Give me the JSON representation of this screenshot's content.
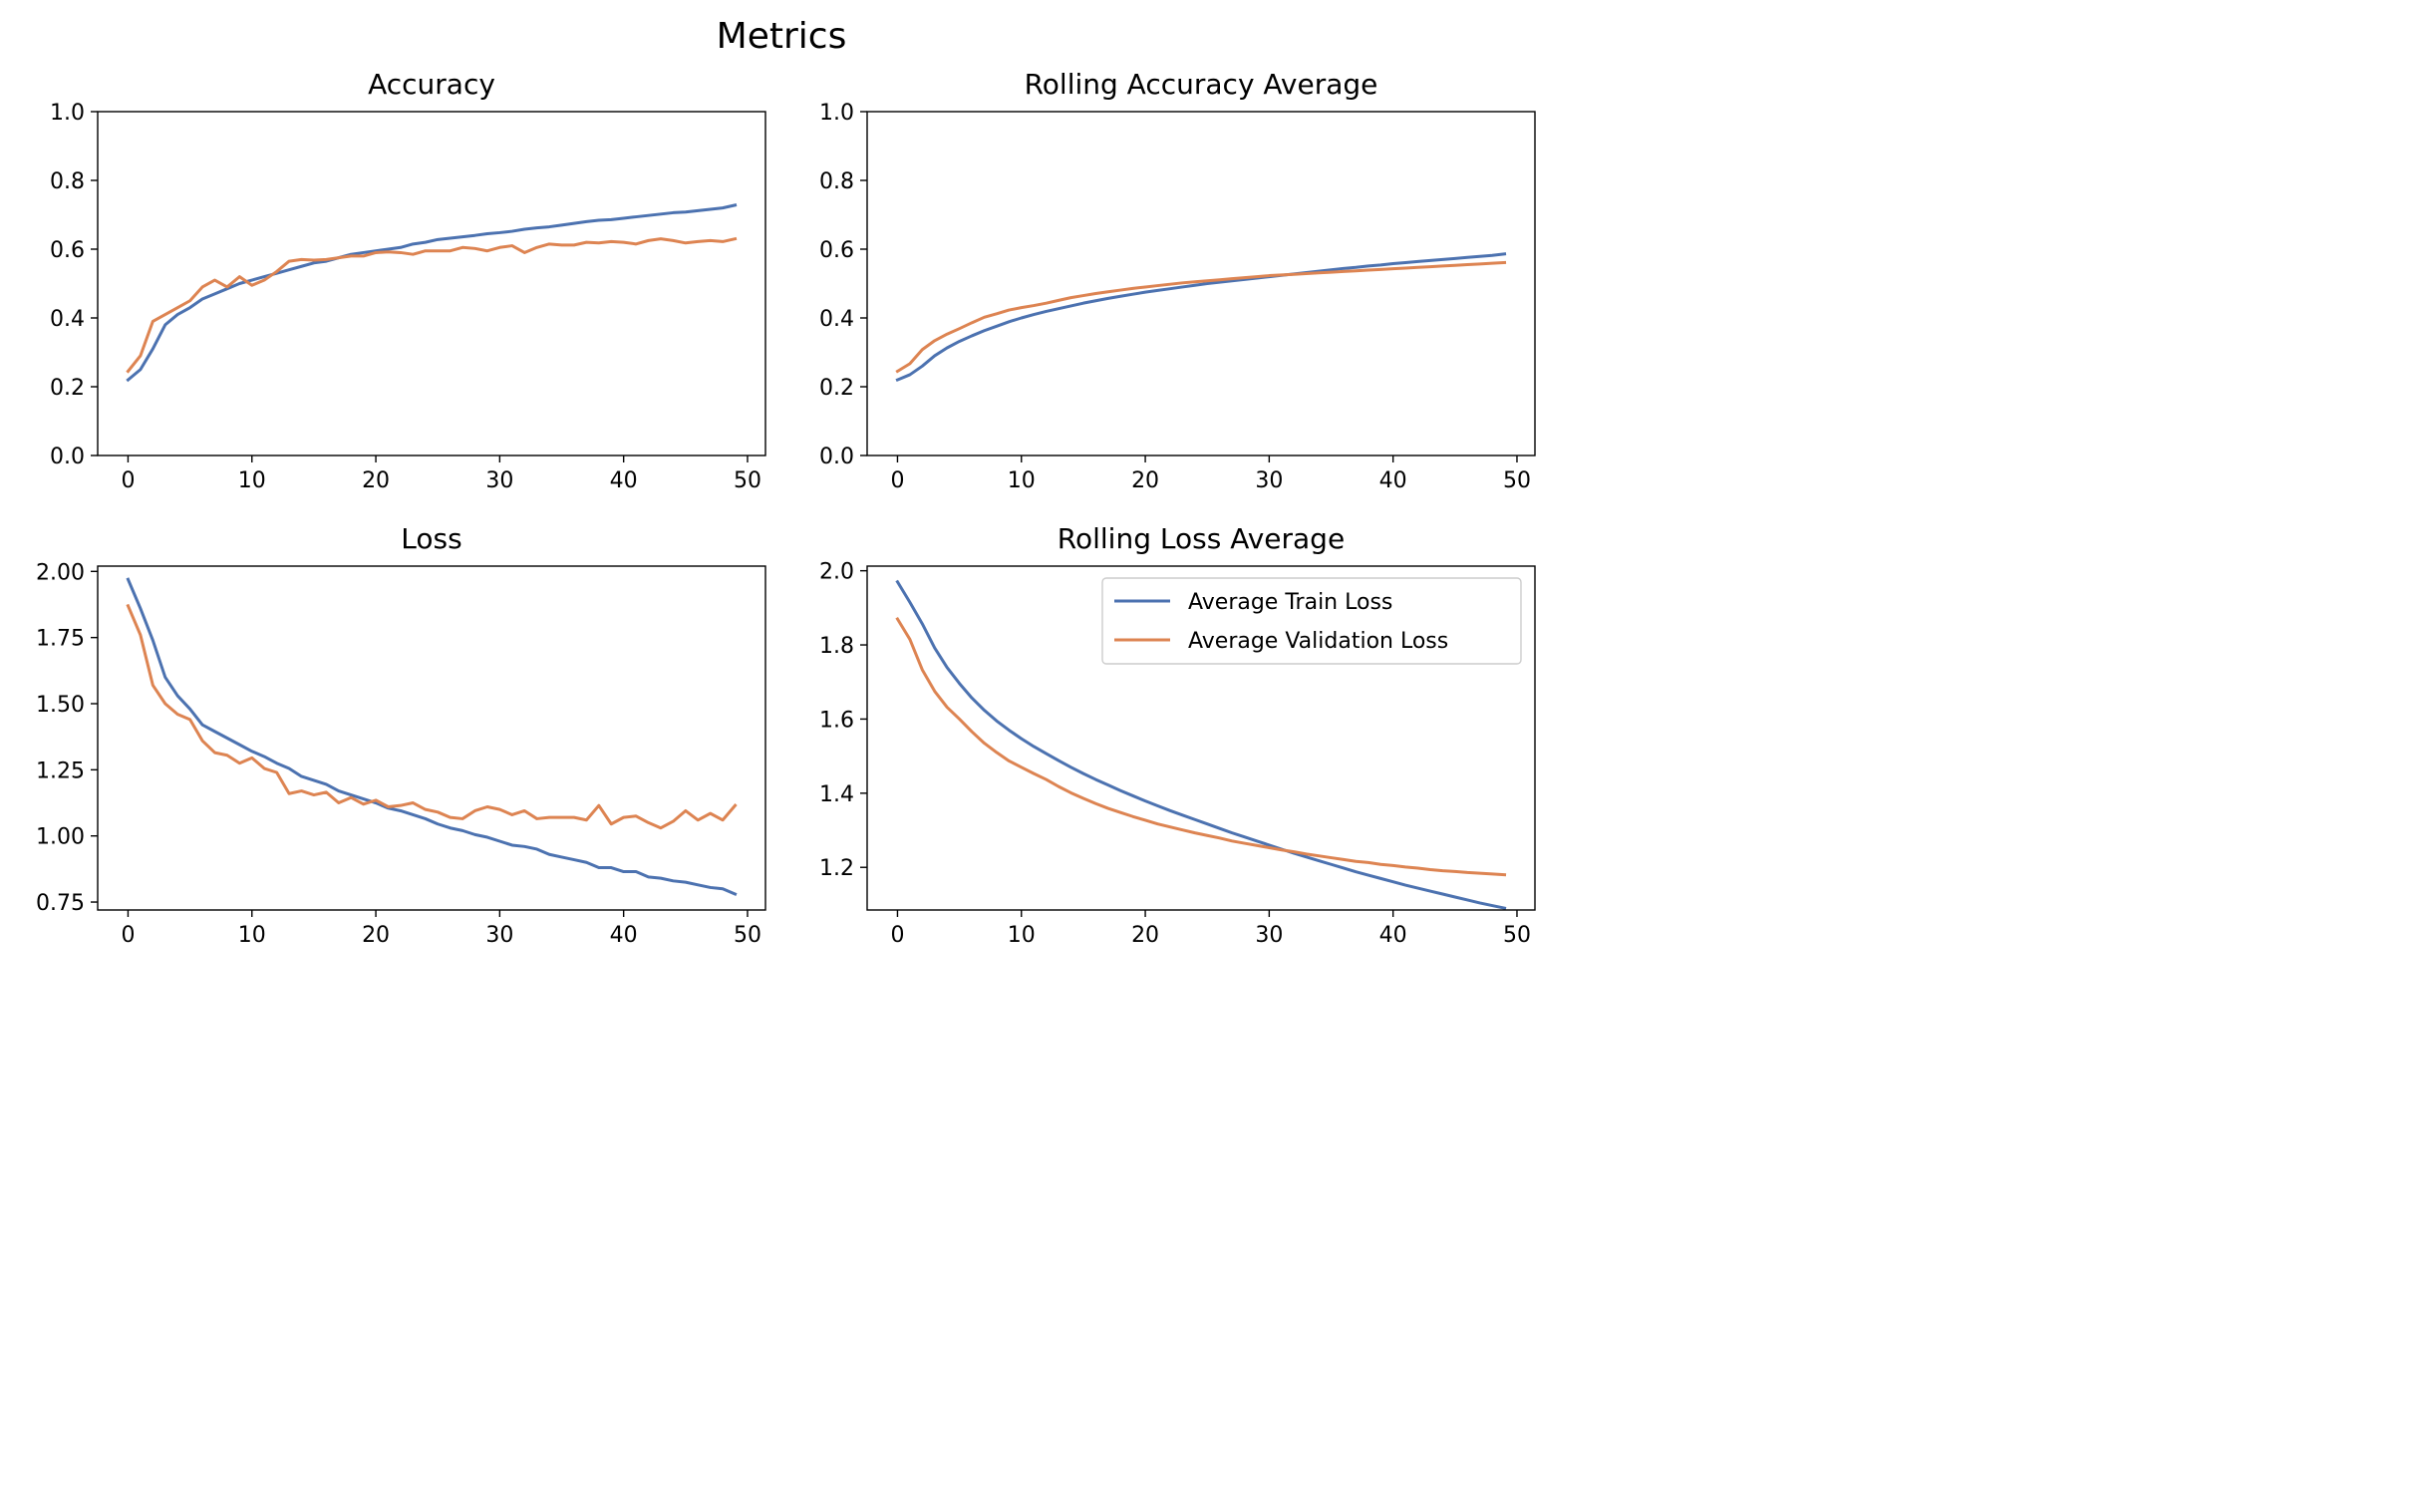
{
  "figure": {
    "title": "Metrics"
  },
  "colors": {
    "train": "#4c72b0",
    "validation": "#dd8452"
  },
  "chart_data": [
    {
      "type": "line",
      "title": "Accuracy",
      "xlabel": "",
      "ylabel": "",
      "xlim": [
        -2.45,
        51.45
      ],
      "ylim": [
        0.0,
        1.0
      ],
      "xticks": [
        0,
        10,
        20,
        30,
        40,
        50
      ],
      "xtick_labels": [
        "0",
        "10",
        "20",
        "30",
        "40",
        "50"
      ],
      "yticks": [
        0.0,
        0.2,
        0.4,
        0.6,
        0.8,
        1.0
      ],
      "ytick_labels": [
        "0.0",
        "0.2",
        "0.4",
        "0.6",
        "0.8",
        "1.0"
      ],
      "legend": null,
      "x": [
        0,
        1,
        2,
        3,
        4,
        5,
        6,
        7,
        8,
        9,
        10,
        11,
        12,
        13,
        14,
        15,
        16,
        17,
        18,
        19,
        20,
        21,
        22,
        23,
        24,
        25,
        26,
        27,
        28,
        29,
        30,
        31,
        32,
        33,
        34,
        35,
        36,
        37,
        38,
        39,
        40,
        41,
        42,
        43,
        44,
        45,
        46,
        47,
        48,
        49
      ],
      "series": [
        {
          "color_key": "train",
          "values": [
            0.22,
            0.25,
            0.31,
            0.38,
            0.41,
            0.43,
            0.455,
            0.47,
            0.485,
            0.5,
            0.51,
            0.52,
            0.53,
            0.54,
            0.55,
            0.56,
            0.565,
            0.575,
            0.585,
            0.59,
            0.595,
            0.6,
            0.605,
            0.615,
            0.62,
            0.628,
            0.632,
            0.636,
            0.64,
            0.645,
            0.648,
            0.652,
            0.658,
            0.662,
            0.665,
            0.67,
            0.675,
            0.68,
            0.684,
            0.686,
            0.69,
            0.694,
            0.698,
            0.702,
            0.706,
            0.708,
            0.712,
            0.716,
            0.72,
            0.728
          ]
        },
        {
          "color_key": "validation",
          "values": [
            0.245,
            0.29,
            0.39,
            0.41,
            0.43,
            0.45,
            0.49,
            0.51,
            0.49,
            0.52,
            0.495,
            0.51,
            0.535,
            0.565,
            0.57,
            0.568,
            0.57,
            0.575,
            0.58,
            0.58,
            0.59,
            0.592,
            0.59,
            0.585,
            0.595,
            0.595,
            0.595,
            0.605,
            0.602,
            0.595,
            0.605,
            0.61,
            0.59,
            0.605,
            0.615,
            0.612,
            0.612,
            0.62,
            0.618,
            0.622,
            0.62,
            0.615,
            0.625,
            0.63,
            0.625,
            0.618,
            0.622,
            0.625,
            0.622,
            0.63
          ]
        }
      ]
    },
    {
      "type": "line",
      "title": "Rolling Accuracy Average",
      "xlabel": "",
      "ylabel": "",
      "xlim": [
        -2.45,
        51.45
      ],
      "ylim": [
        0.0,
        1.0
      ],
      "xticks": [
        0,
        10,
        20,
        30,
        40,
        50
      ],
      "xtick_labels": [
        "0",
        "10",
        "20",
        "30",
        "40",
        "50"
      ],
      "yticks": [
        0.0,
        0.2,
        0.4,
        0.6,
        0.8,
        1.0
      ],
      "ytick_labels": [
        "0.0",
        "0.2",
        "0.4",
        "0.6",
        "0.8",
        "1.0"
      ],
      "legend": null,
      "x": [
        0,
        1,
        2,
        3,
        4,
        5,
        6,
        7,
        8,
        9,
        10,
        11,
        12,
        13,
        14,
        15,
        16,
        17,
        18,
        19,
        20,
        21,
        22,
        23,
        24,
        25,
        26,
        27,
        28,
        29,
        30,
        31,
        32,
        33,
        34,
        35,
        36,
        37,
        38,
        39,
        40,
        41,
        42,
        43,
        44,
        45,
        46,
        47,
        48,
        49
      ],
      "series": [
        {
          "color_key": "train",
          "values": [
            0.22,
            0.235,
            0.26,
            0.29,
            0.313,
            0.332,
            0.348,
            0.363,
            0.376,
            0.389,
            0.4,
            0.41,
            0.419,
            0.427,
            0.435,
            0.443,
            0.45,
            0.457,
            0.463,
            0.469,
            0.475,
            0.48,
            0.485,
            0.49,
            0.495,
            0.5,
            0.504,
            0.508,
            0.512,
            0.516,
            0.52,
            0.524,
            0.528,
            0.532,
            0.536,
            0.54,
            0.544,
            0.547,
            0.551,
            0.554,
            0.558,
            0.561,
            0.564,
            0.567,
            0.57,
            0.573,
            0.576,
            0.579,
            0.582,
            0.586
          ]
        },
        {
          "color_key": "validation",
          "values": [
            0.245,
            0.267,
            0.308,
            0.334,
            0.353,
            0.369,
            0.386,
            0.402,
            0.412,
            0.423,
            0.43,
            0.436,
            0.443,
            0.451,
            0.459,
            0.465,
            0.471,
            0.476,
            0.481,
            0.486,
            0.49,
            0.494,
            0.498,
            0.502,
            0.505,
            0.508,
            0.511,
            0.514,
            0.517,
            0.52,
            0.523,
            0.525,
            0.527,
            0.529,
            0.531,
            0.533,
            0.535,
            0.537,
            0.539,
            0.541,
            0.543,
            0.545,
            0.547,
            0.549,
            0.551,
            0.553,
            0.555,
            0.557,
            0.559,
            0.561
          ]
        }
      ]
    },
    {
      "type": "line",
      "title": "Loss",
      "xlabel": "",
      "ylabel": "",
      "xlim": [
        -2.45,
        51.45
      ],
      "ylim": [
        0.72,
        2.02
      ],
      "xticks": [
        0,
        10,
        20,
        30,
        40,
        50
      ],
      "xtick_labels": [
        "0",
        "10",
        "20",
        "30",
        "40",
        "50"
      ],
      "yticks": [
        0.75,
        1.0,
        1.25,
        1.5,
        1.75,
        2.0
      ],
      "ytick_labels": [
        "0.75",
        "1.00",
        "1.25",
        "1.50",
        "1.75",
        "2.00"
      ],
      "legend": null,
      "x": [
        0,
        1,
        2,
        3,
        4,
        5,
        6,
        7,
        8,
        9,
        10,
        11,
        12,
        13,
        14,
        15,
        16,
        17,
        18,
        19,
        20,
        21,
        22,
        23,
        24,
        25,
        26,
        27,
        28,
        29,
        30,
        31,
        32,
        33,
        34,
        35,
        36,
        37,
        38,
        39,
        40,
        41,
        42,
        43,
        44,
        45,
        46,
        47,
        48,
        49
      ],
      "series": [
        {
          "color_key": "train",
          "values": [
            1.97,
            1.86,
            1.74,
            1.6,
            1.53,
            1.48,
            1.42,
            1.395,
            1.37,
            1.345,
            1.32,
            1.3,
            1.275,
            1.255,
            1.225,
            1.21,
            1.195,
            1.17,
            1.155,
            1.14,
            1.125,
            1.105,
            1.095,
            1.08,
            1.065,
            1.045,
            1.03,
            1.02,
            1.005,
            0.995,
            0.98,
            0.965,
            0.96,
            0.95,
            0.93,
            0.92,
            0.91,
            0.9,
            0.88,
            0.88,
            0.865,
            0.865,
            0.845,
            0.84,
            0.83,
            0.825,
            0.815,
            0.805,
            0.8,
            0.78
          ]
        },
        {
          "color_key": "validation",
          "values": [
            1.87,
            1.76,
            1.57,
            1.5,
            1.46,
            1.44,
            1.36,
            1.315,
            1.305,
            1.275,
            1.295,
            1.255,
            1.24,
            1.16,
            1.17,
            1.155,
            1.165,
            1.125,
            1.145,
            1.12,
            1.135,
            1.11,
            1.115,
            1.125,
            1.1,
            1.09,
            1.07,
            1.065,
            1.095,
            1.11,
            1.1,
            1.08,
            1.095,
            1.065,
            1.07,
            1.07,
            1.07,
            1.06,
            1.115,
            1.045,
            1.07,
            1.075,
            1.05,
            1.03,
            1.055,
            1.095,
            1.06,
            1.085,
            1.06,
            1.115
          ]
        }
      ]
    },
    {
      "type": "line",
      "title": "Rolling Loss Average",
      "xlabel": "",
      "ylabel": "",
      "xlim": [
        -2.45,
        51.45
      ],
      "ylim": [
        1.085,
        2.0125
      ],
      "xticks": [
        0,
        10,
        20,
        30,
        40,
        50
      ],
      "xtick_labels": [
        "0",
        "10",
        "20",
        "30",
        "40",
        "50"
      ],
      "yticks": [
        1.2,
        1.4,
        1.6,
        1.8,
        2.0
      ],
      "ytick_labels": [
        "1.2",
        "1.4",
        "1.6",
        "1.8",
        "2.0"
      ],
      "legend": "top-right",
      "x": [
        0,
        1,
        2,
        3,
        4,
        5,
        6,
        7,
        8,
        9,
        10,
        11,
        12,
        13,
        14,
        15,
        16,
        17,
        18,
        19,
        20,
        21,
        22,
        23,
        24,
        25,
        26,
        27,
        28,
        29,
        30,
        31,
        32,
        33,
        34,
        35,
        36,
        37,
        38,
        39,
        40,
        41,
        42,
        43,
        44,
        45,
        46,
        47,
        48,
        49
      ],
      "series": [
        {
          "name": "Average Train Loss",
          "color_key": "train",
          "values": [
            1.97,
            1.915,
            1.857,
            1.792,
            1.739,
            1.696,
            1.657,
            1.624,
            1.595,
            1.57,
            1.547,
            1.526,
            1.507,
            1.488,
            1.47,
            1.453,
            1.437,
            1.422,
            1.407,
            1.393,
            1.379,
            1.366,
            1.353,
            1.341,
            1.329,
            1.317,
            1.305,
            1.293,
            1.282,
            1.271,
            1.26,
            1.249,
            1.238,
            1.228,
            1.218,
            1.208,
            1.198,
            1.188,
            1.179,
            1.17,
            1.161,
            1.152,
            1.144,
            1.136,
            1.128,
            1.12,
            1.112,
            1.104,
            1.097,
            1.09
          ]
        },
        {
          "name": "Average Validation Loss",
          "color_key": "validation",
          "values": [
            1.87,
            1.815,
            1.733,
            1.675,
            1.632,
            1.6,
            1.566,
            1.535,
            1.51,
            1.487,
            1.47,
            1.453,
            1.437,
            1.418,
            1.401,
            1.386,
            1.372,
            1.359,
            1.348,
            1.337,
            1.327,
            1.317,
            1.309,
            1.301,
            1.293,
            1.286,
            1.279,
            1.271,
            1.265,
            1.259,
            1.253,
            1.247,
            1.242,
            1.236,
            1.231,
            1.226,
            1.221,
            1.216,
            1.213,
            1.208,
            1.205,
            1.201,
            1.198,
            1.194,
            1.191,
            1.189,
            1.186,
            1.184,
            1.182,
            1.18
          ]
        }
      ]
    }
  ]
}
